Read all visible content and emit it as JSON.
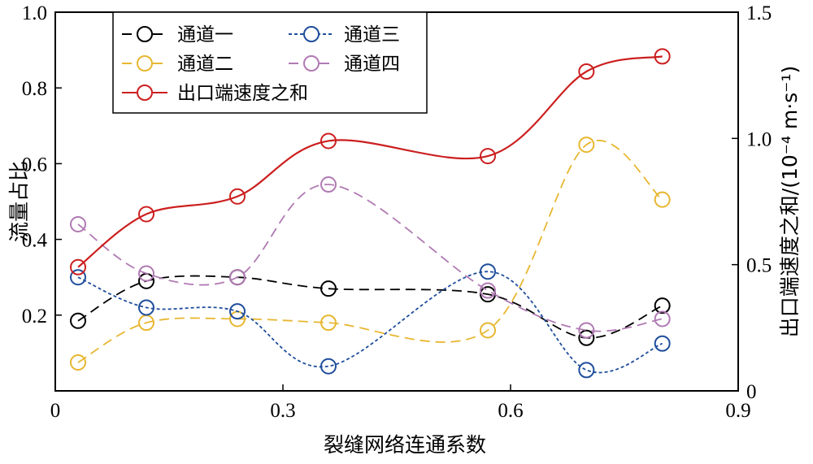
{
  "chart_data": {
    "type": "line",
    "xlabel": "裂缝网络连通系数",
    "ylabel_left": "流量占比",
    "ylabel_right": "出口端速度之和/(10⁻⁴ m·s⁻¹)",
    "x_ticks": [
      "0",
      "0.3",
      "0.6",
      "0.9"
    ],
    "y_left_ticks": [
      "0.2",
      "0.4",
      "0.6",
      "0.8",
      "1.0"
    ],
    "y_right_ticks": [
      "0",
      "0.5",
      "1.0",
      "1.5"
    ],
    "xlim": [
      0,
      0.9
    ],
    "ylim_left": [
      0,
      1.0
    ],
    "ylim_right": [
      0,
      1.5
    ],
    "x": [
      0.03,
      0.12,
      0.24,
      0.36,
      0.57,
      0.7,
      0.8
    ],
    "series": [
      {
        "name": "通道一",
        "axis": "left",
        "color": "#000000",
        "dash": "12,7",
        "values": [
          0.185,
          0.29,
          0.3,
          0.27,
          0.255,
          0.14,
          0.225
        ]
      },
      {
        "name": "通道二",
        "axis": "left",
        "color": "#e8b731",
        "dash": "12,7",
        "values": [
          0.075,
          0.18,
          0.19,
          0.18,
          0.16,
          0.65,
          0.505
        ]
      },
      {
        "name": "通道三",
        "axis": "left",
        "color": "#1f4e9c",
        "dash": "4,3",
        "values": [
          0.3,
          0.22,
          0.21,
          0.065,
          0.315,
          0.055,
          0.125
        ]
      },
      {
        "name": "通道四",
        "axis": "left",
        "color": "#b07ab3",
        "dash": "12,7",
        "values": [
          0.44,
          0.31,
          0.3,
          0.545,
          0.265,
          0.16,
          0.19
        ]
      },
      {
        "name": "出口端速度之和",
        "axis": "right",
        "color": "#cc1f1f",
        "dash": "",
        "values": [
          0.49,
          0.7,
          0.77,
          0.99,
          0.93,
          1.265,
          1.325
        ]
      }
    ],
    "legend_placement": "top-left",
    "grid": false
  }
}
